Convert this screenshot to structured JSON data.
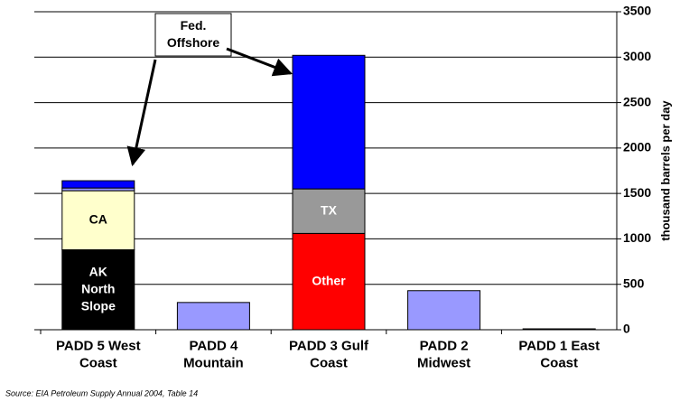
{
  "chart_data": {
    "type": "stacked_bar",
    "categories": [
      "PADD 5 West\nCoast",
      "PADD 4\nMountain",
      "PADD 3 Gulf\nCoast",
      "PADD 2\nMidwest",
      "PADD 1 East\nCoast"
    ],
    "series": [
      {
        "name": "AK North Slope",
        "color": "#000000",
        "values": [
          880,
          null,
          null,
          null,
          null
        ]
      },
      {
        "name": "CA",
        "color": "#ffffcc",
        "values": [
          650,
          null,
          null,
          null,
          null
        ]
      },
      {
        "name": "Other",
        "colors": [
          "#9999ff",
          "#9999ff",
          "#ff0000",
          "#9999ff",
          "#9999ff"
        ],
        "values": [
          30,
          300,
          1060,
          430,
          10
        ]
      },
      {
        "name": "TX",
        "color": "#999999",
        "values": [
          null,
          null,
          490,
          null,
          null
        ]
      },
      {
        "name": "Fed. Offshore",
        "color": "#0000ff",
        "values": [
          80,
          null,
          1470,
          null,
          null
        ]
      }
    ],
    "segment_labels": [
      {
        "series": 0,
        "category": 0,
        "color": "#ffffff"
      },
      {
        "series": 1,
        "category": 0,
        "color": "#000000"
      },
      {
        "series": 3,
        "category": 2,
        "color": "#ffffff"
      },
      {
        "series": 2,
        "category": 2,
        "color": "#ffffff"
      }
    ],
    "annotation": {
      "text": "Fed.\nOffshore",
      "series": 4,
      "categories": [
        0,
        2
      ]
    },
    "ylabel": "thousand barrels per day",
    "ylim": [
      0,
      3500
    ],
    "yticks": [
      0,
      500,
      1000,
      1500,
      2000,
      2500,
      3000,
      3500
    ],
    "grid": true,
    "source": "Source: EIA Petroleum Supply Annual 2004, Table 14"
  }
}
